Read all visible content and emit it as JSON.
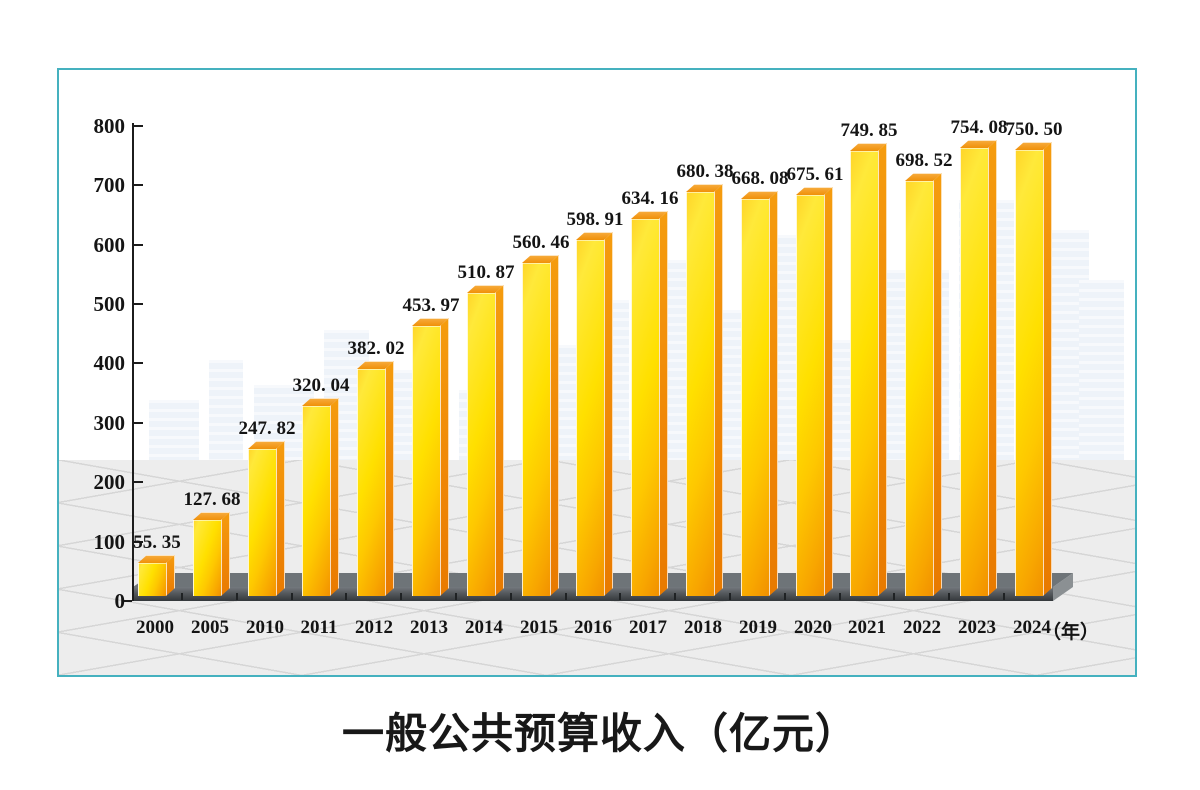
{
  "chart_data": {
    "type": "bar",
    "title": "一般公共预算收入（亿元）",
    "x_unit_label": "（年）",
    "categories": [
      "2000",
      "2005",
      "2010",
      "2011",
      "2012",
      "2013",
      "2014",
      "2015",
      "2016",
      "2017",
      "2018",
      "2019",
      "2020",
      "2021",
      "2022",
      "2023",
      "2024"
    ],
    "values": [
      55.35,
      127.68,
      247.82,
      320.04,
      382.02,
      453.97,
      510.87,
      560.46,
      598.91,
      634.16,
      680.38,
      668.08,
      675.61,
      749.85,
      698.52,
      754.08,
      750.5
    ],
    "value_labels": [
      "55. 35",
      "127. 68",
      "247. 82",
      "320. 04",
      "382. 02",
      "453. 97",
      "510. 87",
      "560. 46",
      "598. 91",
      "634. 16",
      "680. 38",
      "668. 08",
      "675. 61",
      "749. 85",
      "698. 52",
      "754. 08",
      "750. 50"
    ],
    "y_ticks": [
      0,
      100,
      200,
      300,
      400,
      500,
      600,
      700,
      800
    ],
    "ylim": [
      0,
      800
    ],
    "legend": "none",
    "grid": "isometric-floor",
    "bar_style": "3d-column"
  },
  "colors": {
    "frame_border": "#45B1BF",
    "bar_yellow": "#FFE200",
    "bar_orange": "#F29200",
    "bar_side": "#ED860A",
    "bar_top": "#F09009",
    "platform": "#54585B",
    "floor_bg": "#EDEDED",
    "grid_line": "#D6D6D6",
    "label_text": "#141414",
    "skyline": "#DFE9F4",
    "page_background": "#FFFFFF"
  }
}
